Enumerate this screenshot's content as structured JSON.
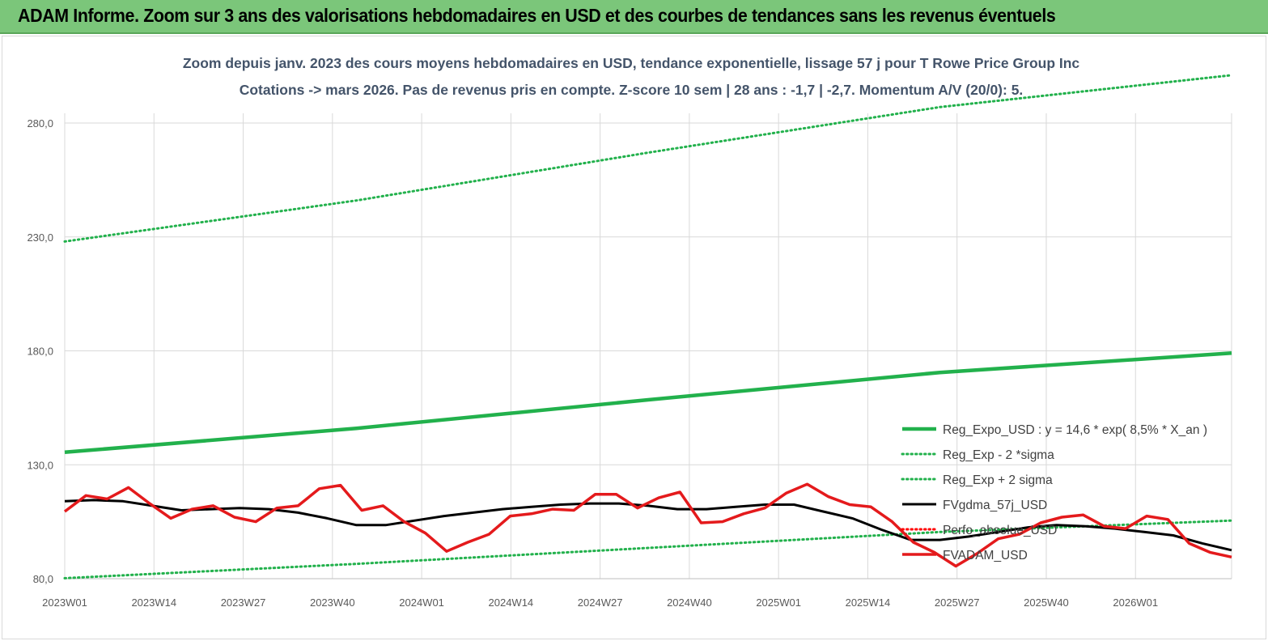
{
  "banner": {
    "title": "ADAM Informe. Zoom sur 3 ans des valorisations hebdomadaires en USD et des courbes de tendances sans les revenus éventuels"
  },
  "chart_data": {
    "type": "line",
    "title": "Zoom depuis janv. 2023 des cours moyens hebdomadaires en USD, tendance exponentielle, lissage 57 j pour T Rowe Price Group Inc",
    "subtitle": "Cotations -> mars 2026. Pas de revenus pris en compte. Z-score 10 sem | 28 ans : -1,7 | -2,7. Momentum A/V (20/0): 5.",
    "xlabel": "",
    "ylabel": "",
    "ylim": [
      80,
      290
    ],
    "yticks": [
      80,
      130,
      180,
      230,
      280
    ],
    "ytick_labels": [
      "80,0",
      "130,0",
      "180,0",
      "230,0",
      "280,0"
    ],
    "x_tick_labels": [
      "2023W01",
      "2023W14",
      "2023W27",
      "2023W40",
      "2024W01",
      "2024W14",
      "2024W27",
      "2024W40",
      "2025W01",
      "2025W14",
      "2025W27",
      "2025W40",
      "2026W01"
    ],
    "x_week_count": 170,
    "grid": true,
    "legend_position": "right-bottom",
    "series": [
      {
        "name": "Reg_Expo_USD : y = 14,6 * exp( 8,5% *  X_an )",
        "color": "#22b14c",
        "style": "solid-thick",
        "values": [
          135.5,
          146.0,
          158.5,
          170.5,
          179.0
        ]
      },
      {
        "name": "Reg_Exp - 2 *sigma",
        "color": "#22b14c",
        "style": "dotted",
        "values": [
          80.2,
          86.5,
          93.5,
          100.5,
          105.5
        ]
      },
      {
        "name": "Reg_Exp + 2 sigma",
        "color": "#22b14c",
        "style": "dotted",
        "values": [
          228.0,
          246.0,
          267.0,
          287.0,
          301.0
        ]
      },
      {
        "name": "FVgdma_57j_USD",
        "color": "#000000",
        "style": "solid",
        "values": [
          114.0,
          114.5,
          114.0,
          112.0,
          110.0,
          110.5,
          111.0,
          110.5,
          109.0,
          106.5,
          103.5,
          103.5,
          105.5,
          107.5,
          109.0,
          110.5,
          111.5,
          112.5,
          113.0,
          113.0,
          112.0,
          110.5,
          110.5,
          111.5,
          112.5,
          112.5,
          109.5,
          106.5,
          101.5,
          97.0,
          97.0,
          98.5,
          100.5,
          102.5,
          103.5,
          103.0,
          102.0,
          100.5,
          99.0,
          95.5,
          92.5
        ]
      },
      {
        "name": "Perfo_absolue_USD",
        "color": "#ff0000",
        "style": "dotted",
        "values": []
      },
      {
        "name": "FVADAM_USD",
        "color": "#e41a1c",
        "style": "solid-thick",
        "values": [
          109.5,
          116.5,
          115.0,
          120.0,
          113.0,
          106.5,
          110.5,
          112.0,
          107.0,
          105.0,
          111.0,
          112.0,
          119.5,
          121.0,
          110.0,
          112.0,
          105.0,
          100.0,
          92.0,
          96.0,
          99.5,
          107.5,
          108.5,
          110.5,
          110.0,
          117.0,
          117.0,
          111.0,
          115.5,
          118.0,
          104.5,
          105.0,
          108.5,
          111.0,
          117.5,
          121.5,
          116.0,
          112.5,
          111.5,
          105.0,
          96.0,
          91.5,
          85.5,
          91.0,
          97.5,
          99.5,
          104.5,
          107.0,
          108.0,
          103.0,
          102.0,
          107.5,
          106.0,
          95.5,
          91.5,
          89.5
        ]
      }
    ]
  }
}
